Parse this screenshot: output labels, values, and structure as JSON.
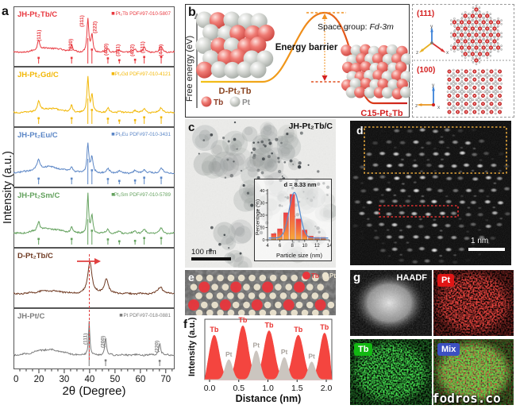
{
  "labels": {
    "a": "a",
    "b": "b",
    "c": "c",
    "d": "d",
    "e": "e",
    "f": "f",
    "g": "g"
  },
  "watermark": "fodros.co",
  "colors": {
    "pt2tb_red": "#e8383f",
    "pt2gd_yellow": "#f2b705",
    "pt2eu_blue": "#5b86c6",
    "pt2sm_green": "#63a15d",
    "dpt2tb_brown": "#6f3a22",
    "pt_gray": "#7c7c7c",
    "highlight_red": "#e04040",
    "barrier_orange": "#f09020",
    "tb_sphere": "#e86060",
    "pt_sphere": "#d8dad6",
    "badge_pt": "#e01616",
    "badge_tb": "#12b812",
    "badge_mix": "#3c50c0",
    "hist_bar_top": "#ee3f46",
    "hist_bar_bottom": "#f7a93a",
    "hist_fit_blue": "#5a8fd0"
  },
  "panel_b": {
    "ylabel": "Free energy (eV)",
    "barrier_label": "Energy barrier",
    "left_structure": "D-Pt₂Tb",
    "right_structure": "C15-Pt₂Tb",
    "space_group_prefix": "Space group: ",
    "space_group": "Fd-3m",
    "legend": [
      {
        "name": "Tb",
        "color": "#8a3b24"
      },
      {
        "name": "Pt",
        "color": "#8b8b8b"
      }
    ],
    "views": [
      {
        "label": "(111)"
      },
      {
        "label": "(100)"
      }
    ],
    "axis_labels": {
      "x": "x",
      "y": "y",
      "z": "z"
    }
  },
  "panel_c": {
    "sample": "JH-Pt₂Tb/C",
    "scalebar": "100 nm"
  },
  "panel_d": {
    "scalebar": "1 nm"
  },
  "panel_e": {
    "legend": [
      {
        "name": "Tb",
        "color": "#e8363c"
      },
      {
        "name": "Pt",
        "color": "#ece4cf"
      }
    ]
  },
  "panel_g": {
    "tiles": [
      "HAADF",
      "Pt",
      "Tb",
      "Mix"
    ]
  },
  "chart_data": [
    {
      "id": "xrd",
      "type": "line",
      "xlabel": "2θ (Degree)",
      "ylabel": "Intensity (a.u.)",
      "x_range": [
        10,
        73.5
      ],
      "x_ticks": [
        10,
        20,
        30,
        40,
        50,
        60,
        70
      ],
      "highlight_line_deg": 39.7,
      "series": [
        {
          "label": "JH-Pt₂Tb/C",
          "color": "#e8383f",
          "legend": "Pt₂Tb PDF#97-010-5807",
          "hump": [
            24.5,
            0.1,
            4.5
          ],
          "peaks": [
            [
              19.9,
              0.26,
              0.55
            ],
            [
              32.9,
              0.17,
              0.5
            ],
            [
              39.3,
              0.8,
              0.42
            ],
            [
              40.9,
              0.42,
              0.45
            ],
            [
              47.2,
              0.1,
              0.6
            ],
            [
              51.7,
              0.05,
              0.6
            ],
            [
              57.9,
              0.07,
              0.7
            ],
            [
              61.5,
              0.11,
              0.6
            ],
            [
              68.2,
              0.14,
              0.7
            ]
          ],
          "sticks": [
            [
              19.9,
              0.1
            ],
            [
              32.9,
              0.1
            ],
            [
              39.3,
              0.55
            ],
            [
              40.9,
              0.28
            ],
            [
              47.2,
              0.09
            ],
            [
              51.7,
              0.05
            ],
            [
              57.9,
              0.06
            ],
            [
              61.5,
              0.12
            ],
            [
              68.2,
              0.12
            ]
          ],
          "peak_labels": [
            {
              "t": "(111)",
              "deg": 19.8,
              "b": 44
            },
            {
              "t": "(220)",
              "deg": 32.4,
              "b": 56
            },
            {
              "t": "(311)",
              "deg": 36.8,
              "b": 26
            },
            {
              "t": "(222)",
              "deg": 41.9,
              "b": 34
            },
            {
              "t": "(400)",
              "deg": 46.3,
              "b": 62
            },
            {
              "t": "(331)",
              "deg": 50.9,
              "b": 63
            },
            {
              "t": "(422)",
              "deg": 56.6,
              "b": 63
            },
            {
              "t": "(511)",
              "deg": 60.6,
              "b": 59
            },
            {
              "t": "(440)",
              "deg": 67.9,
              "b": 63
            }
          ]
        },
        {
          "label": "JH-Pt₂Gd/C",
          "color": "#f2b705",
          "legend": "Pt₂Gd PDF#97-010-4121",
          "hump": [
            24.5,
            0.1,
            4.5
          ],
          "peaks": [
            [
              19.9,
              0.24,
              0.55
            ],
            [
              32.9,
              0.16,
              0.5
            ],
            [
              39.3,
              0.85,
              0.42
            ],
            [
              40.9,
              0.44,
              0.45
            ],
            [
              47.2,
              0.11,
              0.6
            ],
            [
              51.7,
              0.05,
              0.6
            ],
            [
              57.9,
              0.06,
              0.7
            ],
            [
              61.5,
              0.1,
              0.6
            ],
            [
              68.2,
              0.13,
              0.7
            ]
          ],
          "sticks": [
            [
              19.9,
              0.1
            ],
            [
              32.9,
              0.1
            ],
            [
              39.3,
              0.55
            ],
            [
              40.9,
              0.28
            ],
            [
              47.2,
              0.09
            ],
            [
              51.7,
              0.05
            ],
            [
              57.9,
              0.06
            ],
            [
              61.5,
              0.12
            ],
            [
              68.2,
              0.12
            ]
          ],
          "peak_labels": []
        },
        {
          "label": "JH-Pt₂Eu/C",
          "color": "#5b86c6",
          "legend": "Pt₂Eu PDF#97-010-3431",
          "hump": [
            23.5,
            0.15,
            5.5
          ],
          "peaks": [
            [
              19.9,
              0.22,
              0.6
            ],
            [
              32.9,
              0.14,
              0.55
            ],
            [
              39.3,
              0.72,
              0.42
            ],
            [
              40.9,
              0.38,
              0.5
            ],
            [
              47.2,
              0.1,
              0.7
            ],
            [
              51.7,
              0.05,
              0.7
            ],
            [
              57.9,
              0.06,
              0.7
            ],
            [
              61.5,
              0.09,
              0.7
            ],
            [
              68.2,
              0.12,
              0.8
            ]
          ],
          "sticks": [
            [
              19.9,
              0.1
            ],
            [
              32.9,
              0.1
            ],
            [
              39.3,
              0.55
            ],
            [
              40.9,
              0.28
            ],
            [
              47.2,
              0.09
            ],
            [
              51.7,
              0.05
            ],
            [
              57.9,
              0.06
            ],
            [
              61.5,
              0.12
            ],
            [
              68.2,
              0.12
            ]
          ],
          "peak_labels": []
        },
        {
          "label": "JH-Pt₂Sm/C",
          "color": "#63a15d",
          "legend": "Pt₂Sm PDF#97-010-5789",
          "hump": [
            24.0,
            0.11,
            5.0
          ],
          "peaks": [
            [
              19.9,
              0.22,
              0.55
            ],
            [
              32.9,
              0.15,
              0.5
            ],
            [
              39.3,
              0.95,
              0.35
            ],
            [
              40.9,
              0.42,
              0.45
            ],
            [
              47.2,
              0.1,
              0.6
            ],
            [
              51.7,
              0.05,
              0.6
            ],
            [
              57.9,
              0.06,
              0.7
            ],
            [
              61.5,
              0.1,
              0.6
            ],
            [
              68.2,
              0.13,
              0.7
            ]
          ],
          "sticks": [
            [
              19.9,
              0.1
            ],
            [
              32.9,
              0.1
            ],
            [
              39.3,
              0.55
            ],
            [
              40.9,
              0.28
            ],
            [
              47.2,
              0.09
            ],
            [
              51.7,
              0.05
            ],
            [
              57.9,
              0.06
            ],
            [
              61.5,
              0.12
            ],
            [
              68.2,
              0.12
            ]
          ],
          "peak_labels": []
        },
        {
          "label": "D-Pt₂Tb/C",
          "color": "#6f3a22",
          "legend": null,
          "hump": [
            24.0,
            0.07,
            5.0
          ],
          "peaks": [
            [
              40.1,
              0.78,
              0.95
            ],
            [
              46.6,
              0.36,
              0.9
            ],
            [
              67.9,
              0.17,
              1.1
            ]
          ],
          "sticks": [],
          "peak_labels": [],
          "shift_arrow": true
        },
        {
          "label": "JH-Pt/C",
          "color": "#7c7c7c",
          "legend": "Pt PDF#97-018-0881",
          "hump": [
            23.5,
            0.13,
            5.0
          ],
          "peaks": [
            [
              39.8,
              0.8,
              0.32
            ],
            [
              46.3,
              0.42,
              0.38
            ],
            [
              67.6,
              0.28,
              0.45
            ]
          ],
          "sticks": [
            [
              39.8,
              0.92
            ],
            [
              46.3,
              0.1
            ],
            [
              67.6,
              0.09
            ]
          ],
          "peak_labels": [
            {
              "t": "(111)",
              "deg": 38.1,
              "b": 46
            },
            {
              "t": "(200)",
              "deg": 45.1,
              "b": 50
            },
            {
              "t": "(220)",
              "deg": 66.3,
              "b": 56
            }
          ]
        }
      ]
    },
    {
      "id": "size_histogram",
      "type": "bar",
      "title": "d = 8.33 nm",
      "xlabel": "Particle size (nm)",
      "ylabel": "Percentage (%)",
      "x_ticks": [
        4,
        6,
        8,
        10,
        12,
        14
      ],
      "y_ticks": [
        0,
        10,
        20,
        30,
        40
      ],
      "ylim": [
        0,
        42
      ],
      "categories": [
        5,
        6,
        7,
        8,
        9,
        10,
        11,
        12,
        13
      ],
      "values": [
        5,
        9,
        22,
        37,
        17,
        8,
        3,
        2,
        2
      ],
      "fit": {
        "type": "gaussian",
        "mean": 8.33,
        "sigma": 0.85,
        "amplitude": 37,
        "color": "#5a8fd0"
      }
    },
    {
      "id": "line_profile",
      "type": "area",
      "xlabel": "Distance (nm)",
      "ylabel": "Intensity (a.u.)",
      "x_ticks": [
        "0.0",
        "0.5",
        "1.0",
        "1.5",
        "2.0"
      ],
      "x_range": [
        0,
        2.05
      ],
      "series": [
        {
          "name": "Tb",
          "color": "#f4453f",
          "label_color": "#e8322f",
          "peaks": [
            [
              0.08,
              0.8,
              0.085
            ],
            [
              0.57,
              0.97,
              0.09
            ],
            [
              1.02,
              0.88,
              0.09
            ],
            [
              1.52,
              0.8,
              0.09
            ],
            [
              1.97,
              0.84,
              0.08
            ]
          ]
        },
        {
          "name": "Pt",
          "color": "#cbc5bf",
          "label_color": "#a8a29c",
          "peaks": [
            [
              0.33,
              0.36,
              0.062
            ],
            [
              0.8,
              0.52,
              0.065
            ],
            [
              1.28,
              0.4,
              0.062
            ],
            [
              1.75,
              0.32,
              0.06
            ]
          ]
        }
      ]
    }
  ]
}
